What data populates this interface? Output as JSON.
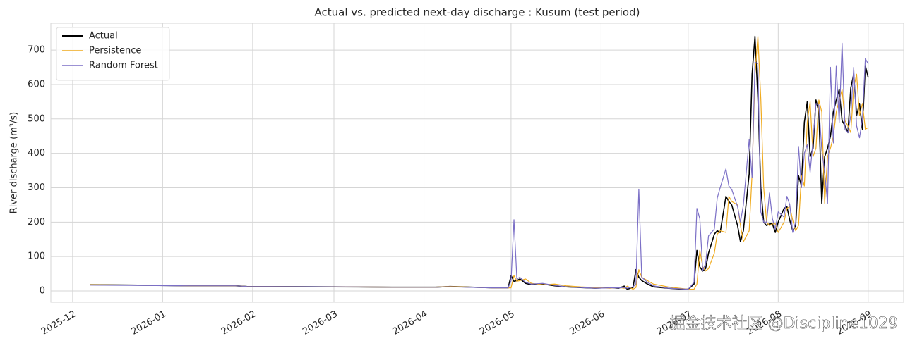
{
  "chart_data": {
    "type": "line",
    "title": "Actual vs. predicted next-day discharge : Kusum (test period)",
    "y_label": "River discharge (m³/s)",
    "watermark": "掘金技术社区 @Discipline1029",
    "x": [
      6,
      20,
      40,
      56,
      60,
      90,
      110,
      125,
      130,
      145,
      150,
      151,
      152,
      153,
      154,
      156,
      158,
      162,
      166,
      170,
      175,
      180,
      185,
      188,
      190,
      191,
      193,
      194,
      195,
      196,
      198,
      200,
      205,
      210,
      212,
      214,
      215,
      216,
      217,
      218,
      219,
      221,
      222,
      223,
      225,
      226,
      227,
      229,
      230,
      231,
      233,
      234,
      235,
      236,
      237,
      238,
      239,
      240,
      241,
      242,
      243,
      245,
      246,
      247,
      248,
      249,
      250,
      251,
      252,
      253,
      254,
      255,
      256,
      257,
      258,
      259,
      260,
      261,
      262,
      263,
      264,
      265,
      266,
      267,
      268,
      269,
      270,
      271,
      272,
      273,
      274
    ],
    "series": [
      {
        "name": "Actual",
        "color": "#000000",
        "width": 1.6,
        "values": [
          18,
          17,
          15,
          15,
          13,
          12,
          11,
          11,
          13,
          9,
          9,
          45,
          28,
          30,
          35,
          22,
          18,
          20,
          15,
          12,
          10,
          8,
          10,
          8,
          14,
          5,
          10,
          62,
          40,
          30,
          20,
          12,
          8,
          5,
          5,
          20,
          118,
          70,
          58,
          65,
          110,
          165,
          175,
          170,
          275,
          260,
          250,
          190,
          143,
          175,
          340,
          630,
          740,
          560,
          300,
          200,
          190,
          195,
          195,
          170,
          200,
          240,
          245,
          205,
          175,
          190,
          335,
          305,
          490,
          550,
          390,
          415,
          555,
          520,
          255,
          390,
          415,
          450,
          520,
          555,
          585,
          495,
          480,
          460,
          590,
          630,
          510,
          545,
          470,
          655,
          620
        ]
      },
      {
        "name": "Persistence",
        "color": "#f0ab1e",
        "width": 1.2,
        "values": [
          18,
          17,
          15,
          15,
          13,
          12,
          11,
          11,
          13,
          9,
          9,
          9,
          45,
          28,
          30,
          35,
          22,
          18,
          20,
          15,
          12,
          10,
          8,
          10,
          8,
          14,
          5,
          10,
          62,
          40,
          30,
          20,
          12,
          7,
          5,
          5,
          20,
          118,
          70,
          58,
          65,
          110,
          165,
          175,
          170,
          275,
          260,
          250,
          190,
          143,
          175,
          340,
          630,
          740,
          560,
          300,
          200,
          190,
          195,
          195,
          170,
          200,
          240,
          245,
          205,
          175,
          190,
          335,
          305,
          490,
          550,
          390,
          415,
          555,
          520,
          255,
          390,
          415,
          450,
          520,
          555,
          585,
          495,
          480,
          460,
          590,
          630,
          510,
          545,
          470,
          475
        ]
      },
      {
        "name": "Random Forest",
        "color": "#7b6fc6",
        "width": 1.2,
        "values": [
          17,
          16,
          15,
          15,
          13,
          12,
          11,
          11,
          12,
          9,
          9,
          30,
          207,
          35,
          40,
          25,
          20,
          22,
          16,
          12,
          10,
          8,
          9,
          9,
          10,
          8,
          12,
          20,
          296,
          40,
          25,
          15,
          8,
          6,
          5,
          25,
          240,
          210,
          60,
          80,
          160,
          180,
          270,
          300,
          355,
          305,
          295,
          245,
          200,
          250,
          440,
          330,
          665,
          660,
          230,
          200,
          200,
          285,
          210,
          180,
          230,
          215,
          275,
          250,
          170,
          200,
          420,
          300,
          400,
          425,
          345,
          440,
          545,
          540,
          410,
          345,
          255,
          650,
          430,
          655,
          490,
          720,
          470,
          460,
          510,
          650,
          480,
          445,
          500,
          675,
          660
        ]
      }
    ],
    "xlim": [
      -7.5,
      286.2
    ],
    "xticks": [
      {
        "value": 0,
        "label": "2025-12"
      },
      {
        "value": 31,
        "label": "2026-01"
      },
      {
        "value": 62,
        "label": "2026-02"
      },
      {
        "value": 90,
        "label": "2026-03"
      },
      {
        "value": 121,
        "label": "2026-04"
      },
      {
        "value": 151,
        "label": "2026-05"
      },
      {
        "value": 182,
        "label": "2026-06"
      },
      {
        "value": 212,
        "label": "2026-07"
      },
      {
        "value": 243,
        "label": "2026-08"
      },
      {
        "value": 274,
        "label": "2026-09"
      }
    ],
    "ylim": [
      -32.7,
      778
    ],
    "yticks": [
      0,
      100,
      200,
      300,
      400,
      500,
      600,
      700
    ],
    "grid": true,
    "legend": "upper-left"
  }
}
